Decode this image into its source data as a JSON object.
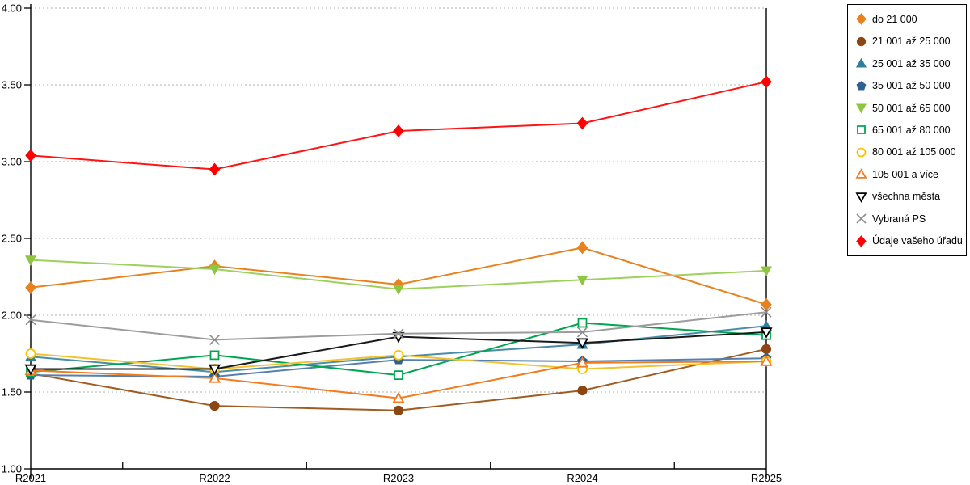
{
  "chart_data": {
    "type": "line",
    "title": "",
    "xlabel": "",
    "ylabel": "",
    "x_categories": [
      "R2021",
      "R2022",
      "R2023",
      "R2024",
      "R2025"
    ],
    "ylim": [
      1.0,
      4.0
    ],
    "y_tick_step": 0.5,
    "y_tick_labels": [
      "1.00",
      "1.50",
      "2.00",
      "2.50",
      "3.00",
      "3.50",
      "4.00"
    ],
    "grid": "horizontal dashed",
    "legend_position": "right outside",
    "series": [
      {
        "name": "do 21 000",
        "marker": "diamond",
        "fill": "filled",
        "color": "#e8821e",
        "line_color": "#e8821e",
        "values": [
          2.18,
          2.32,
          2.2,
          2.44,
          2.07
        ]
      },
      {
        "name": "21 001 až 25 000",
        "marker": "circle",
        "fill": "filled",
        "color": "#8c4613",
        "line_color": "#a05c20",
        "values": [
          1.62,
          1.41,
          1.38,
          1.51,
          1.78
        ]
      },
      {
        "name": "25 001 až 35 000",
        "marker": "triangle-up",
        "fill": "filled",
        "color": "#2e7f9e",
        "line_color": "#4a8da6",
        "values": [
          1.73,
          1.63,
          1.73,
          1.81,
          1.93
        ]
      },
      {
        "name": "35 001 až 50 000",
        "marker": "pentagon",
        "fill": "filled",
        "color": "#2e6093",
        "line_color": "#5580ad",
        "values": [
          1.61,
          1.6,
          1.71,
          1.7,
          1.72
        ]
      },
      {
        "name": "50 001 až 65 000",
        "marker": "triangle-down",
        "fill": "filled",
        "color": "#8dc63f",
        "line_color": "#9ed05e",
        "values": [
          2.36,
          2.3,
          2.17,
          2.23,
          2.29
        ]
      },
      {
        "name": "65 001 až 80 000",
        "marker": "square",
        "fill": "open",
        "color": "#00a550",
        "line_color": "#00a550",
        "values": [
          1.63,
          1.74,
          1.61,
          1.95,
          1.87
        ]
      },
      {
        "name": "80 001 až 105 000",
        "marker": "circle",
        "fill": "open",
        "color": "#ffc000",
        "line_color": "#f2c233",
        "values": [
          1.75,
          1.65,
          1.74,
          1.65,
          1.7
        ]
      },
      {
        "name": "105 001 a více",
        "marker": "triangle-up",
        "fill": "open",
        "color": "#f47b20",
        "line_color": "#f47b20",
        "values": [
          1.64,
          1.59,
          1.46,
          1.69,
          1.7
        ]
      },
      {
        "name": "všechna města",
        "marker": "triangle-down",
        "fill": "open",
        "color": "#000000",
        "line_color": "#1a1a1a",
        "values": [
          1.65,
          1.65,
          1.86,
          1.82,
          1.89
        ]
      },
      {
        "name": "Vybraná PS",
        "marker": "x",
        "fill": "open",
        "color": "#8c8c8c",
        "line_color": "#9c9c9c",
        "values": [
          1.97,
          1.84,
          1.88,
          1.89,
          2.02
        ]
      },
      {
        "name": "Údaje vašeho úřadu",
        "marker": "diamond",
        "fill": "filled",
        "color": "#ff0000",
        "line_color": "#ff1414",
        "values": [
          3.04,
          2.95,
          3.2,
          3.25,
          3.52
        ]
      }
    ]
  }
}
